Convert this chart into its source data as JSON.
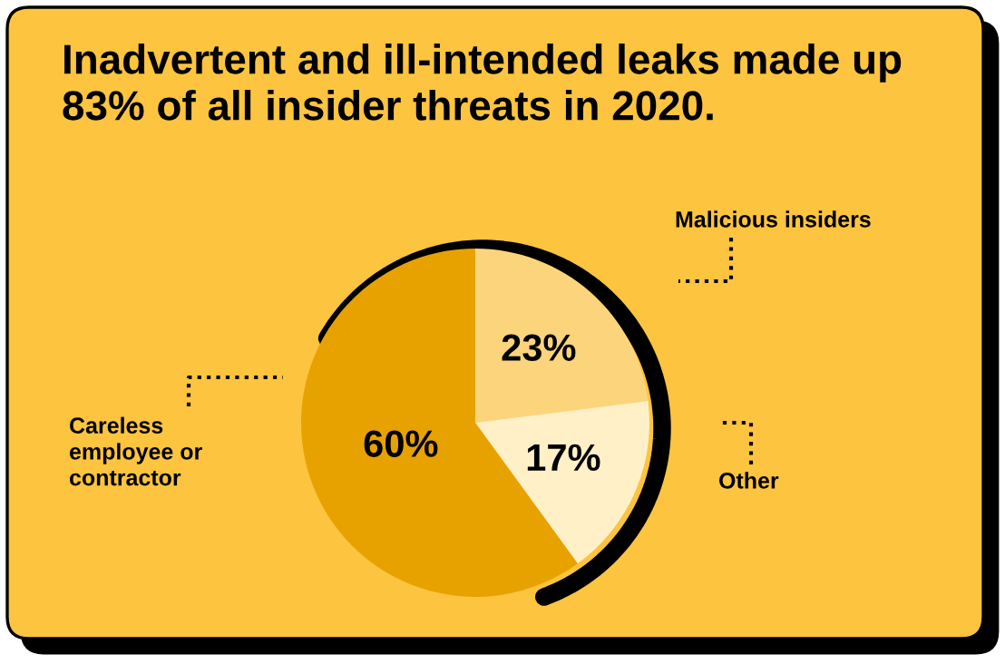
{
  "chart_data": {
    "type": "pie",
    "title": "Inadvertent and ill-intended leaks made up\n83% of all insider threats in 2020.",
    "categories": [
      "Malicious insiders",
      "Other",
      "Careless\nemployee or\ncontractor"
    ],
    "values": [
      23,
      17,
      60
    ],
    "value_labels": [
      "23%",
      "17%",
      "60%"
    ],
    "colors": [
      "#fcd47c",
      "#fff0c8",
      "#e8a200"
    ],
    "legend": false
  }
}
